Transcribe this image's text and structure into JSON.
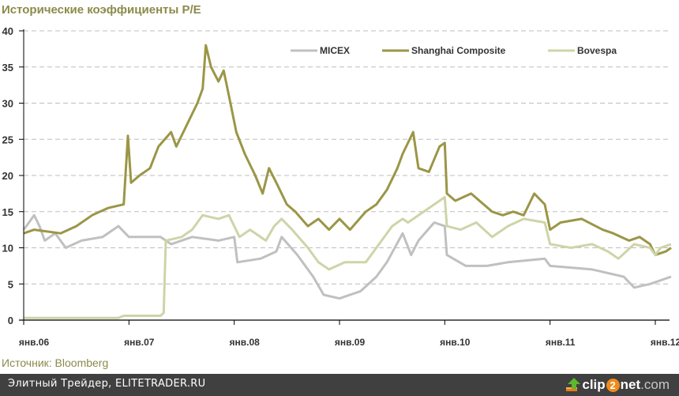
{
  "title": "Исторические коэффициенты P/E",
  "source": "Источник: Bloomberg",
  "footer": {
    "text": "Элитный Трейдер, ELITETRADER.RU",
    "logo": "clip2net.com",
    "logo_parts": [
      "clip",
      "2",
      "net",
      ".com"
    ]
  },
  "colors": {
    "micex": "#c0c0c0",
    "shanghai": "#9b9647",
    "bovespa": "#cfd4a8",
    "title": "#8c8a4a",
    "footer_bg": "#404040"
  },
  "chart_data": {
    "type": "line",
    "title": "Исторические коэффициенты P/E",
    "xlabel": "",
    "ylabel": "",
    "ylim": [
      0,
      40
    ],
    "xlim": [
      2006,
      2012.15
    ],
    "yticks": [
      "0",
      "5",
      "10",
      "15",
      "20",
      "25",
      "30",
      "35",
      "40"
    ],
    "ytick_values": [
      0,
      5,
      10,
      15,
      20,
      25,
      30,
      35,
      40
    ],
    "xticks": [
      "янв.06",
      "янв.07",
      "янв.08",
      "янв.09",
      "янв.10",
      "янв.11",
      "янв.12"
    ],
    "xtick_values": [
      2006,
      2007,
      2008,
      2009,
      2010,
      2011,
      2012
    ],
    "grid": "horizontal dashed",
    "legend_position": "top-right",
    "series": [
      {
        "name": "MICEX",
        "color": "#c0c0c0",
        "x": [
          2006.0,
          2006.05,
          2006.1,
          2006.15,
          2006.2,
          2006.3,
          2006.4,
          2006.55,
          2006.75,
          2006.9,
          2007.0,
          2007.3,
          2007.4,
          2007.6,
          2007.85,
          2008.0,
          2008.03,
          2008.25,
          2008.4,
          2008.45,
          2008.6,
          2008.75,
          2008.85,
          2009.0,
          2009.2,
          2009.35,
          2009.45,
          2009.6,
          2009.68,
          2009.75,
          2009.9,
          2010.0,
          2010.02,
          2010.2,
          2010.4,
          2010.6,
          2010.95,
          2011.0,
          2011.4,
          2011.7,
          2011.8,
          2011.95,
          2012.05,
          2012.15
        ],
        "y": [
          12.5,
          13.5,
          14.5,
          13.0,
          11.0,
          12.0,
          10.0,
          11.0,
          11.5,
          13.0,
          11.5,
          11.5,
          10.5,
          11.5,
          11.0,
          11.5,
          8.0,
          8.5,
          9.5,
          11.5,
          9.0,
          6.0,
          3.5,
          3.0,
          4.0,
          6.0,
          8.0,
          12.0,
          9.0,
          11.0,
          13.5,
          13.0,
          9.0,
          7.5,
          7.5,
          8.0,
          8.5,
          7.5,
          7.0,
          6.0,
          4.5,
          5.0,
          5.5,
          6.0
        ]
      },
      {
        "name": "Shanghai Composite",
        "color": "#9b9647",
        "x": [
          2006.0,
          2006.1,
          2006.35,
          2006.5,
          2006.65,
          2006.8,
          2006.95,
          2006.99,
          2007.02,
          2007.1,
          2007.2,
          2007.28,
          2007.4,
          2007.45,
          2007.55,
          2007.65,
          2007.7,
          2007.73,
          2007.78,
          2007.85,
          2007.9,
          2007.95,
          2008.02,
          2008.1,
          2008.2,
          2008.27,
          2008.33,
          2008.4,
          2008.5,
          2008.58,
          2008.7,
          2008.8,
          2008.9,
          2009.0,
          2009.1,
          2009.25,
          2009.35,
          2009.45,
          2009.55,
          2009.6,
          2009.7,
          2009.75,
          2009.85,
          2009.95,
          2010.0,
          2010.02,
          2010.1,
          2010.25,
          2010.45,
          2010.55,
          2010.65,
          2010.75,
          2010.85,
          2010.95,
          2011.0,
          2011.1,
          2011.3,
          2011.5,
          2011.6,
          2011.75,
          2011.85,
          2011.95,
          2012.0,
          2012.1,
          2012.15
        ],
        "y": [
          12.0,
          12.5,
          12.0,
          13.0,
          14.5,
          15.5,
          16.0,
          25.5,
          19.0,
          20.0,
          21.0,
          24.0,
          26.0,
          24.0,
          27.0,
          30.0,
          32.0,
          38.0,
          35.0,
          33.0,
          34.5,
          31.0,
          26.0,
          23.0,
          20.0,
          17.5,
          21.0,
          19.0,
          16.0,
          15.0,
          13.0,
          14.0,
          12.5,
          14.0,
          12.5,
          15.0,
          16.0,
          18.0,
          21.0,
          23.0,
          26.0,
          21.0,
          20.5,
          24.0,
          24.5,
          17.5,
          16.5,
          17.5,
          15.0,
          14.5,
          15.0,
          14.5,
          17.5,
          16.0,
          12.5,
          13.5,
          14.0,
          12.5,
          12.0,
          11.0,
          11.5,
          10.5,
          9.0,
          9.5,
          10.0
        ]
      },
      {
        "name": "Bovespa",
        "color": "#cfd4a8",
        "x": [
          2006.0,
          2006.9,
          2006.95,
          2007.3,
          2007.33,
          2007.35,
          2007.5,
          2007.6,
          2007.7,
          2007.85,
          2007.95,
          2008.0,
          2008.05,
          2008.15,
          2008.3,
          2008.38,
          2008.45,
          2008.55,
          2008.7,
          2008.8,
          2008.9,
          2009.05,
          2009.25,
          2009.35,
          2009.5,
          2009.6,
          2009.65,
          2009.8,
          2009.95,
          2010.0,
          2010.02,
          2010.15,
          2010.3,
          2010.45,
          2010.6,
          2010.75,
          2010.95,
          2011.0,
          2011.2,
          2011.4,
          2011.55,
          2011.65,
          2011.8,
          2011.95,
          2012.0,
          2012.05,
          2012.15
        ],
        "y": [
          0.3,
          0.3,
          0.6,
          0.6,
          1.0,
          11.0,
          11.5,
          12.5,
          14.5,
          14.0,
          14.5,
          13.0,
          11.5,
          12.5,
          11.0,
          13.0,
          14.0,
          12.5,
          10.0,
          8.0,
          7.0,
          8.0,
          8.0,
          10.0,
          13.0,
          14.0,
          13.5,
          15.0,
          16.5,
          17.0,
          13.0,
          12.5,
          13.5,
          11.5,
          13.0,
          14.0,
          13.5,
          10.5,
          10.0,
          10.5,
          9.5,
          8.5,
          10.5,
          10.0,
          9.0,
          10.0,
          10.5
        ]
      }
    ]
  }
}
